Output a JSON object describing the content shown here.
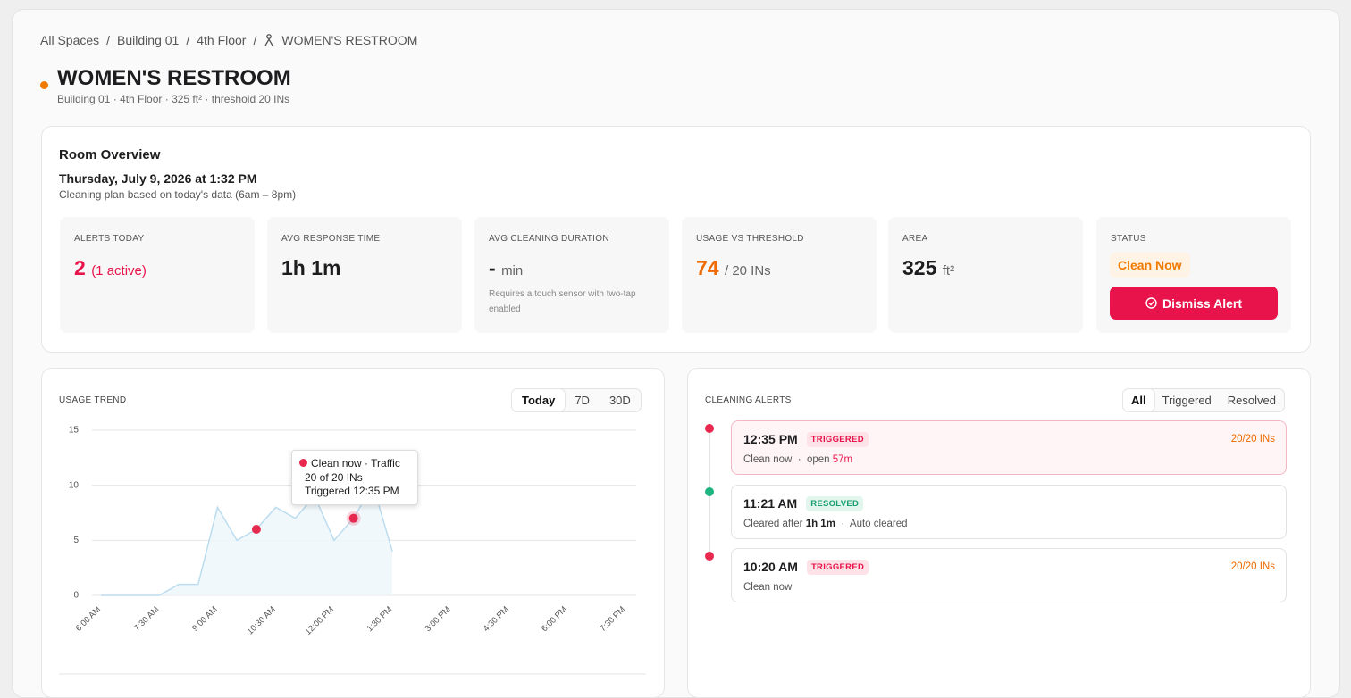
{
  "breadcrumb": [
    "All Spaces",
    "Building 01",
    "4th Floor",
    "WOMEN'S RESTROOM"
  ],
  "header": {
    "title": "WOMEN'S RESTROOM",
    "subtitle": "Building 01 · 4th Floor · 325 ft² · threshold 20 INs"
  },
  "overview": {
    "title": "Room Overview",
    "date": "Thursday, July 9, 2026 at 1:32 PM",
    "note": "Cleaning plan based on today's data (6am – 8pm)",
    "cards": [
      {
        "label": "ALERTS TODAY",
        "value": "2",
        "extra": "(1 active)"
      },
      {
        "label": "AVG RESPONSE TIME",
        "value": "1h 1m"
      },
      {
        "label": "AVG CLEANING DURATION",
        "value": "-",
        "unit": "min",
        "note": "Requires a touch sensor with two-tap enabled"
      },
      {
        "label": "USAGE VS THRESHOLD",
        "value": "74",
        "unit": "/ 20 INs"
      },
      {
        "label": "AREA",
        "value": "325",
        "unit": "ft²"
      },
      {
        "label": "STATUS",
        "value": "Clean Now",
        "button": "Dismiss Alert"
      }
    ]
  },
  "usage_trend": {
    "title": "USAGE TREND",
    "tabs": [
      "Today",
      "7D",
      "30D"
    ],
    "tooltip": [
      "Clean now · Traffic",
      "20 of 20 INs",
      "Triggered 12:35 PM"
    ],
    "chart_data": {
      "type": "line",
      "categories": [
        "6:00 AM",
        null,
        null,
        "7:30 AM",
        null,
        null,
        "9:00 AM",
        null,
        null,
        "10:30 AM",
        null,
        null,
        "12:00 PM",
        null,
        null,
        "1:30 PM",
        null,
        null,
        "3:00 PM",
        null,
        null,
        "4:30 PM",
        null,
        null,
        "6:00 PM",
        null,
        null,
        "7:30 PM"
      ],
      "series": [
        {
          "color": "#bcdcef",
          "values": [
            0,
            0,
            0,
            0,
            1,
            1,
            8,
            5,
            6,
            8,
            7,
            9,
            5,
            7,
            10,
            4,
            null,
            null,
            null,
            null,
            null,
            null,
            null,
            null,
            null,
            null,
            null,
            null
          ]
        },
        {
          "color": "#e8294f",
          "values": [
            null,
            null,
            null,
            null,
            null,
            null,
            null,
            null,
            6,
            null,
            null,
            null,
            null,
            7,
            null,
            null,
            null,
            null,
            null,
            null,
            null,
            null,
            null,
            null,
            null,
            null,
            null,
            null
          ]
        }
      ],
      "ylim": [
        0,
        15
      ],
      "yticks": [
        0,
        5,
        10,
        15
      ],
      "grid": true
    }
  },
  "alerts": {
    "title": "CLEANING ALERTS",
    "filters": [
      "All",
      "Triggered",
      "Resolved"
    ],
    "items": [
      {
        "time": "12:35 PM",
        "status": "TRIGGERED",
        "text": "Clean now",
        "detail": "open",
        "detail_value": "57m",
        "count": "20/20 INs"
      },
      {
        "time": "11:21 AM",
        "status": "RESOLVED",
        "text": "Cleared after",
        "detail_value": "1h 1m",
        "detail": "Auto cleared"
      },
      {
        "time": "10:20 AM",
        "status": "TRIGGERED",
        "text": "Clean now",
        "count": "20/20 INs"
      }
    ]
  }
}
